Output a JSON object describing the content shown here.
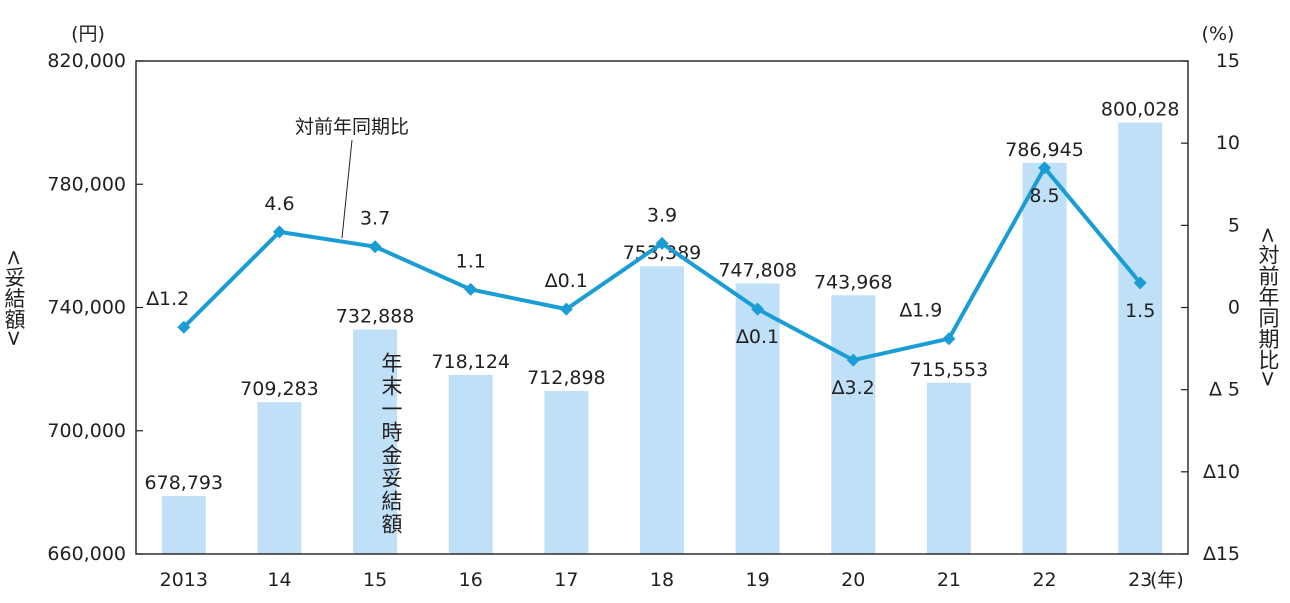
{
  "chart_data": {
    "type": "bar",
    "categories": [
      "2013",
      "14",
      "15",
      "16",
      "17",
      "18",
      "19",
      "20",
      "21",
      "22",
      "23"
    ],
    "x_unit_label": "(年)",
    "series": [
      {
        "name": "年末一時金妥結額",
        "type": "bar",
        "axis": "left",
        "values": [
          678793,
          709283,
          732888,
          718124,
          712898,
          753389,
          747808,
          743968,
          715553,
          786945,
          800028
        ],
        "value_labels": [
          "678,793",
          "709,283",
          "732,888",
          "718,124",
          "712,898",
          "753,389",
          "747,808",
          "743,968",
          "715,553",
          "786,945",
          "800,028"
        ],
        "color": "#bfe0f6"
      },
      {
        "name": "対前年同期比",
        "type": "line",
        "axis": "right",
        "values": [
          -1.2,
          4.6,
          3.7,
          1.1,
          -0.1,
          3.9,
          -0.1,
          -3.2,
          -1.9,
          8.5,
          1.5
        ],
        "value_labels": [
          "∆1.2",
          "4.6",
          "3.7",
          "1.1",
          "∆0.1",
          "3.9",
          "∆0.1",
          "∆3.2",
          "∆1.9",
          "8.5",
          "1.5"
        ],
        "color": "#1a9cd4"
      }
    ],
    "y_left": {
      "label": "<妥結額>",
      "unit": "(円)",
      "min": 660000,
      "max": 820000,
      "ticks": [
        660000,
        700000,
        740000,
        780000,
        820000
      ],
      "tick_labels": [
        "660,000",
        "700,000",
        "740,000",
        "780,000",
        "820,000"
      ]
    },
    "y_right": {
      "label": "<対前年同期比>",
      "unit": "(%)",
      "min": -15,
      "max": 15,
      "ticks": [
        -15,
        -10,
        -5,
        0,
        5,
        10,
        15
      ],
      "tick_labels": [
        "∆15",
        "∆10",
        "∆ 5",
        "0",
        "5",
        "10",
        "15"
      ]
    },
    "grid": false,
    "legend": "none"
  }
}
